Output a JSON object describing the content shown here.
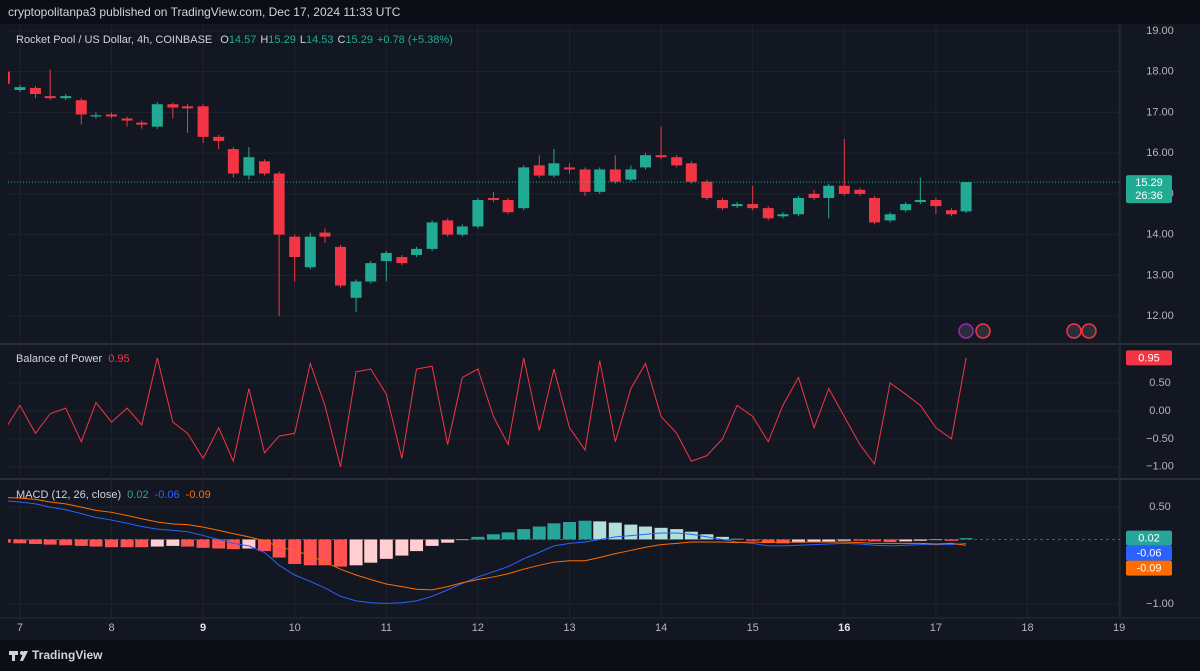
{
  "header": {
    "text": "cryptopolitanpa3 published on TradingView.com, Dec 17, 2024 11:33 UTC"
  },
  "footer": {
    "brand": "TradingView"
  },
  "chart_data": [
    {
      "type": "candlestick",
      "title": "Rocket Pool / US Dollar, 4h, COINBASE",
      "ohlc_labels": [
        "O",
        "H",
        "L",
        "C"
      ],
      "change": "+0.78 (+5.38%)",
      "countdown": "26:36",
      "up_color": "#22ab94",
      "down_color": "#f23645",
      "grid": true,
      "xlim": [
        6.87,
        19.01
      ],
      "xticks": [
        7,
        8,
        9,
        10,
        11,
        12,
        13,
        14,
        15,
        16,
        17,
        18,
        19
      ],
      "bold_xticks": [
        9,
        16
      ],
      "ylim": [
        11.34,
        19.17
      ],
      "yticks": [
        {
          "value": 12,
          "label": "12.00"
        },
        {
          "value": 13,
          "label": "13.00"
        },
        {
          "value": 14,
          "label": "14.00"
        },
        {
          "value": 15,
          "label": "15.00"
        },
        {
          "value": 16,
          "label": "16.00"
        },
        {
          "value": 17,
          "label": "17.00"
        },
        {
          "value": 18,
          "label": "18.00"
        },
        {
          "value": 19,
          "label": "19.00"
        }
      ],
      "x": [
        6.83,
        7,
        7.17,
        7.33,
        7.5,
        7.67,
        7.83,
        8,
        8.17,
        8.33,
        8.5,
        8.67,
        8.83,
        9,
        9.17,
        9.33,
        9.5,
        9.67,
        9.83,
        10,
        10.17,
        10.33,
        10.5,
        10.67,
        10.83,
        11,
        11.17,
        11.33,
        11.5,
        11.67,
        11.83,
        12,
        12.17,
        12.33,
        12.5,
        12.67,
        12.83,
        13,
        13.17,
        13.33,
        13.5,
        13.67,
        13.83,
        14,
        14.17,
        14.33,
        14.5,
        14.67,
        14.83,
        15,
        15.17,
        15.33,
        15.5,
        15.67,
        15.83,
        16,
        16.17,
        16.33,
        16.5,
        16.67,
        16.83,
        17,
        17.17,
        17.33
      ],
      "open": [
        18.0,
        17.55,
        17.6,
        17.4,
        17.35,
        17.3,
        16.9,
        16.95,
        16.85,
        16.75,
        16.65,
        17.2,
        17.15,
        17.15,
        16.4,
        16.1,
        15.45,
        15.8,
        15.5,
        13.95,
        13.2,
        14.05,
        13.7,
        12.45,
        12.85,
        13.35,
        13.45,
        13.5,
        13.65,
        14.35,
        14.0,
        14.2,
        14.9,
        14.85,
        14.65,
        15.7,
        15.45,
        15.65,
        15.6,
        15.05,
        15.6,
        15.35,
        15.65,
        15.95,
        15.9,
        15.75,
        15.3,
        14.85,
        14.7,
        14.75,
        14.65,
        14.45,
        14.5,
        15.0,
        14.9,
        15.2,
        15.1,
        14.9,
        14.35,
        14.6,
        14.8,
        14.85,
        14.6,
        14.57
      ],
      "high": [
        18.05,
        17.68,
        17.65,
        18.05,
        17.45,
        17.35,
        17.0,
        17.0,
        16.9,
        16.8,
        17.25,
        17.25,
        17.2,
        17.2,
        16.45,
        16.15,
        16.15,
        15.85,
        15.55,
        14.0,
        14.05,
        14.15,
        13.75,
        12.9,
        13.35,
        13.6,
        13.5,
        13.7,
        14.35,
        14.4,
        14.25,
        14.9,
        15.05,
        14.9,
        15.7,
        15.95,
        16.1,
        15.75,
        15.65,
        15.65,
        15.95,
        15.7,
        16.0,
        16.65,
        15.95,
        15.8,
        15.35,
        14.9,
        14.8,
        15.2,
        14.7,
        14.55,
        14.95,
        15.1,
        15.25,
        16.35,
        15.15,
        14.95,
        14.55,
        14.8,
        15.4,
        14.9,
        14.65,
        15.29
      ],
      "low": [
        17.6,
        17.5,
        17.35,
        17.3,
        17.3,
        16.7,
        16.85,
        16.85,
        16.65,
        16.6,
        16.6,
        16.85,
        16.5,
        16.25,
        16.1,
        15.4,
        15.35,
        15.45,
        12.0,
        12.85,
        13.15,
        13.8,
        12.7,
        12.1,
        12.8,
        12.85,
        13.25,
        13.45,
        13.6,
        13.95,
        13.95,
        14.15,
        14.8,
        14.5,
        14.6,
        15.4,
        15.4,
        15.5,
        14.95,
        15.0,
        15.25,
        15.3,
        15.6,
        15.85,
        15.65,
        15.25,
        14.85,
        14.6,
        14.65,
        14.6,
        14.35,
        14.4,
        14.45,
        14.85,
        14.4,
        14.95,
        14.95,
        14.25,
        14.3,
        14.55,
        14.75,
        14.5,
        14.45,
        14.53
      ],
      "close": [
        17.7,
        17.62,
        17.45,
        17.35,
        17.4,
        16.95,
        16.93,
        16.9,
        16.8,
        16.7,
        17.2,
        17.12,
        17.1,
        16.4,
        16.3,
        15.5,
        15.9,
        15.5,
        14.0,
        13.45,
        13.95,
        13.95,
        12.75,
        12.85,
        13.3,
        13.55,
        13.3,
        13.65,
        14.3,
        14.0,
        14.2,
        14.85,
        14.85,
        14.55,
        15.65,
        15.45,
        15.75,
        15.6,
        15.05,
        15.6,
        15.3,
        15.6,
        15.95,
        15.9,
        15.7,
        15.3,
        14.9,
        14.65,
        14.75,
        14.65,
        14.4,
        14.5,
        14.9,
        14.9,
        15.2,
        15.0,
        15.0,
        14.3,
        14.5,
        14.75,
        14.85,
        14.7,
        14.5,
        15.29
      ]
    },
    {
      "type": "line",
      "title": "Balance of Power",
      "color": "#f23645",
      "grid": true,
      "ylim": [
        -1.2,
        1.18
      ],
      "yticks": [
        {
          "value": 0.5,
          "label": "0.50"
        },
        {
          "value": 0,
          "label": "0.00"
        },
        {
          "value": -0.5,
          "label": "−0.50"
        },
        {
          "value": -1,
          "label": "−1.00"
        }
      ],
      "values": [
        -0.35,
        0.1,
        -0.4,
        -0.05,
        0.05,
        -0.55,
        0.15,
        -0.2,
        0.05,
        -0.25,
        0.95,
        -0.2,
        -0.4,
        -0.85,
        -0.3,
        -0.9,
        0.4,
        -0.75,
        -0.45,
        -0.4,
        0.85,
        0.1,
        -1.0,
        0.7,
        0.75,
        0.3,
        -0.85,
        0.75,
        0.8,
        -0.6,
        0.6,
        0.75,
        -0.1,
        -0.6,
        0.95,
        -0.35,
        0.75,
        -0.3,
        -0.7,
        0.9,
        -0.55,
        0.4,
        0.85,
        -0.1,
        -0.4,
        -0.9,
        -0.8,
        -0.5,
        0.1,
        -0.1,
        -0.55,
        0.1,
        0.6,
        -0.3,
        0.4,
        -0.1,
        -0.6,
        -0.95,
        0.5,
        0.3,
        0.1,
        -0.3,
        -0.5,
        0.95
      ]
    },
    {
      "type": "macd",
      "title": "MACD (12, 26, close)",
      "grid": true,
      "ylim": [
        -1.2,
        0.92
      ],
      "yticks": [
        {
          "value": 0.5,
          "label": "0.50"
        },
        {
          "value": -1,
          "label": "−1.00"
        }
      ],
      "histogram": {
        "colors": [
          "#26a69a",
          "#b2dfdb",
          "#ff5252",
          "#ffcdd2"
        ],
        "values": [
          -0.05,
          -0.06,
          -0.07,
          -0.08,
          -0.09,
          -0.1,
          -0.11,
          -0.12,
          -0.12,
          -0.12,
          -0.11,
          -0.1,
          -0.11,
          -0.13,
          -0.14,
          -0.15,
          -0.14,
          -0.18,
          -0.28,
          -0.38,
          -0.4,
          -0.4,
          -0.42,
          -0.4,
          -0.36,
          -0.3,
          -0.25,
          -0.18,
          -0.1,
          -0.05,
          -0.01,
          0.04,
          0.08,
          0.11,
          0.16,
          0.2,
          0.25,
          0.27,
          0.29,
          0.28,
          0.26,
          0.23,
          0.2,
          0.18,
          0.16,
          0.12,
          0.08,
          0.04,
          0.01,
          -0.02,
          -0.05,
          -0.06,
          -0.05,
          -0.04,
          -0.03,
          -0.02,
          -0.02,
          -0.03,
          -0.04,
          -0.03,
          -0.02,
          -0.01,
          -0.02,
          0.02
        ]
      },
      "macd": {
        "color": "#2962ff",
        "values": [
          0.6,
          0.58,
          0.55,
          0.5,
          0.46,
          0.4,
          0.34,
          0.3,
          0.25,
          0.2,
          0.16,
          0.14,
          0.12,
          0.06,
          0.0,
          -0.06,
          -0.1,
          -0.2,
          -0.4,
          -0.55,
          -0.65,
          -0.75,
          -0.88,
          -0.95,
          -0.98,
          -0.99,
          -0.98,
          -0.95,
          -0.88,
          -0.78,
          -0.68,
          -0.58,
          -0.5,
          -0.42,
          -0.3,
          -0.2,
          -0.1,
          -0.06,
          -0.04,
          0.0,
          0.04,
          0.06,
          0.08,
          0.1,
          0.1,
          0.08,
          0.04,
          0.0,
          -0.04,
          -0.06,
          -0.1,
          -0.1,
          -0.09,
          -0.08,
          -0.07,
          -0.06,
          -0.07,
          -0.09,
          -0.1,
          -0.09,
          -0.08,
          -0.08,
          -0.08,
          -0.06
        ]
      },
      "signal": {
        "color": "#ff6d00",
        "values": [
          0.65,
          0.64,
          0.62,
          0.58,
          0.55,
          0.5,
          0.45,
          0.42,
          0.37,
          0.32,
          0.27,
          0.24,
          0.23,
          0.19,
          0.14,
          0.09,
          0.04,
          -0.02,
          -0.12,
          -0.17,
          -0.25,
          -0.35,
          -0.46,
          -0.55,
          -0.62,
          -0.69,
          -0.73,
          -0.77,
          -0.78,
          -0.73,
          -0.67,
          -0.62,
          -0.58,
          -0.53,
          -0.46,
          -0.4,
          -0.35,
          -0.33,
          -0.33,
          -0.28,
          -0.22,
          -0.17,
          -0.12,
          -0.08,
          -0.06,
          -0.04,
          -0.04,
          -0.04,
          -0.05,
          -0.04,
          -0.05,
          -0.04,
          -0.04,
          -0.04,
          -0.04,
          -0.04,
          -0.05,
          -0.06,
          -0.06,
          -0.06,
          -0.06,
          -0.07,
          -0.06,
          -0.09
        ]
      }
    }
  ]
}
